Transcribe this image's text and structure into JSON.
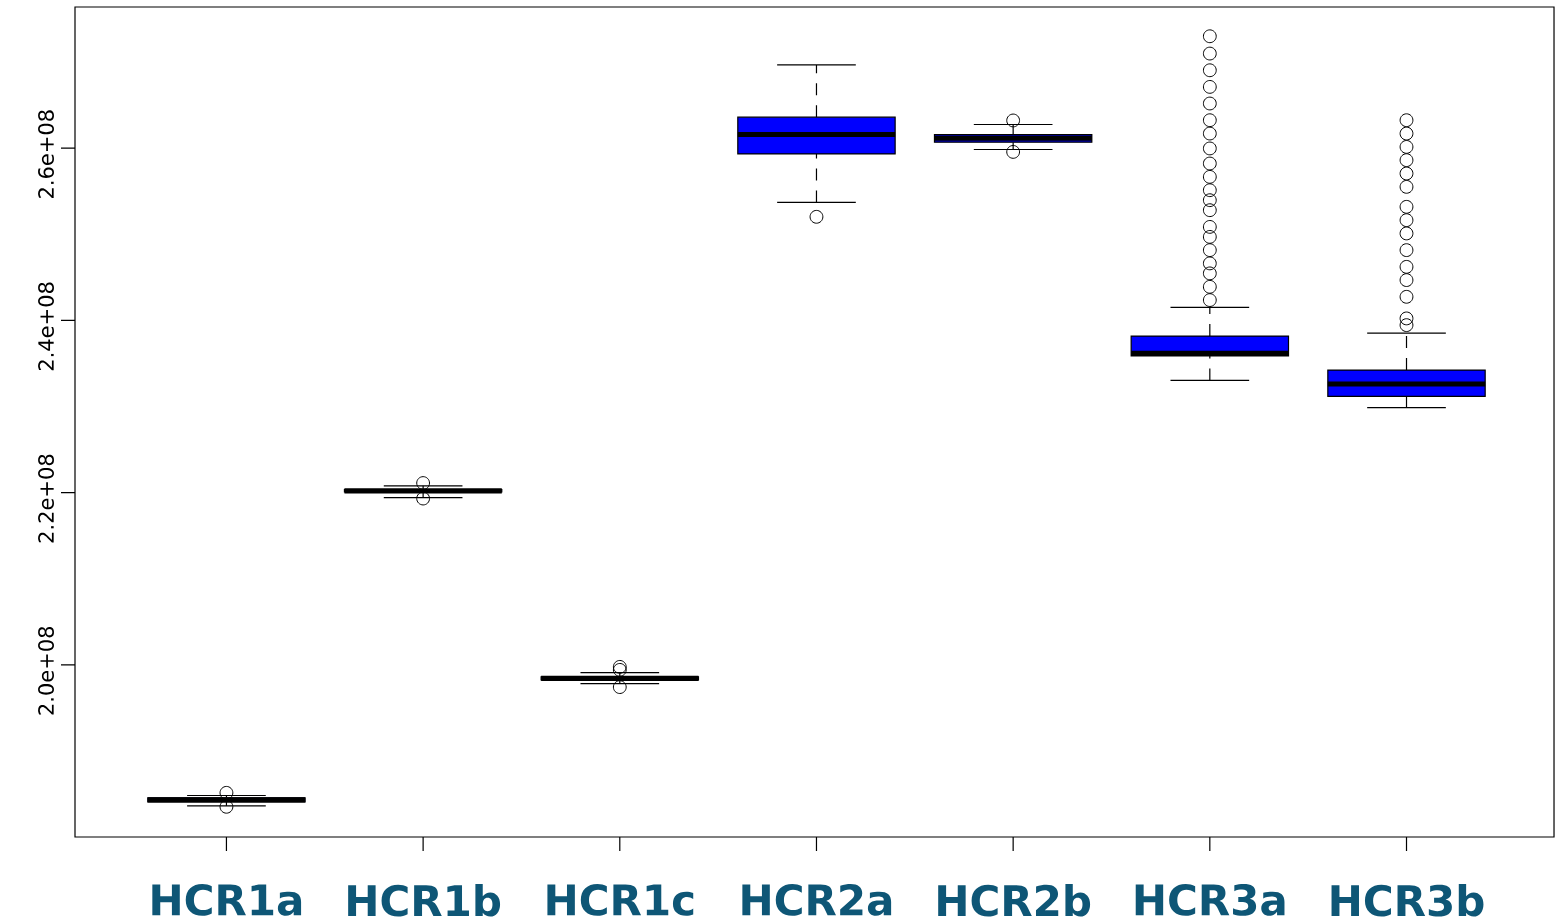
{
  "chart_data": {
    "type": "box",
    "categories": [
      "HCR1a",
      "HCR1b",
      "HCR1c",
      "HCR2a",
      "HCR2b",
      "HCR3a",
      "HCR3b"
    ],
    "colors": [
      "#0000ff",
      "#0000ff",
      "#0000ff",
      "#0000ff",
      "#0000ff",
      "#0000ff",
      "#0000ff"
    ],
    "boxes": [
      {
        "low": 183620000,
        "q1": 184090000,
        "median": 184320000,
        "q3": 184550000,
        "high": 184820000,
        "outliers": [
          183510000,
          185130000
        ]
      },
      {
        "low": 219410000,
        "q1": 220070000,
        "median": 220210000,
        "q3": 220360000,
        "high": 220790000,
        "outliers": [
          219310000,
          221110000
        ]
      },
      {
        "low": 197810000,
        "q1": 198250000,
        "median": 198420000,
        "q3": 198600000,
        "high": 199100000,
        "outliers": [
          197410000,
          199410000,
          199760000
        ]
      },
      {
        "low": 253700000,
        "q1": 259340000,
        "median": 261590000,
        "q3": 263600000,
        "high": 269670000,
        "outliers": [
          252030000
        ]
      },
      {
        "low": 259850000,
        "q1": 260700000,
        "median": 261160000,
        "q3": 261590000,
        "high": 262750000,
        "outliers": [
          259570000,
          263220000
        ]
      },
      {
        "low": 233030000,
        "q1": 235890000,
        "median": 236170000,
        "q3": 238180000,
        "high": 241510000,
        "outliers": [
          273000000,
          270990000,
          269050000,
          267120000,
          265190000,
          263250000,
          261700000,
          259970000,
          258220000,
          256670000,
          255120000,
          253960000,
          252800000,
          250860000,
          249700000,
          248160000,
          246620000,
          245460000,
          243900000,
          242360000
        ]
      },
      {
        "low": 229860000,
        "q1": 231180000,
        "median": 232610000,
        "q3": 234230000,
        "high": 238530000,
        "outliers": [
          263250000,
          261700000,
          260150000,
          258610000,
          257060000,
          255510000,
          253190000,
          251640000,
          250100000,
          248160000,
          246220000,
          244680000,
          242740000,
          240230000,
          239450000
        ]
      }
    ],
    "ylim": [
      180000000,
      276400000
    ],
    "yticks": [
      {
        "value": 200000000,
        "label": "2.0e+08"
      },
      {
        "value": 220000000,
        "label": "2.2e+08"
      },
      {
        "value": 240000000,
        "label": "2.4e+08"
      },
      {
        "value": 260000000,
        "label": "2.6e+08"
      }
    ],
    "marker": "circle",
    "line_style": "dashed"
  }
}
